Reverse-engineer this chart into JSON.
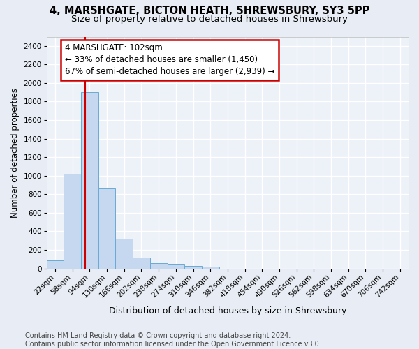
{
  "title1": "4, MARSHGATE, BICTON HEATH, SHREWSBURY, SY3 5PP",
  "title2": "Size of property relative to detached houses in Shrewsbury",
  "xlabel": "Distribution of detached houses by size in Shrewsbury",
  "ylabel": "Number of detached properties",
  "footnote": "Contains HM Land Registry data © Crown copyright and database right 2024.\nContains public sector information licensed under the Open Government Licence v3.0.",
  "bar_labels": [
    "22sqm",
    "58sqm",
    "94sqm",
    "130sqm",
    "166sqm",
    "202sqm",
    "238sqm",
    "274sqm",
    "310sqm",
    "346sqm",
    "382sqm",
    "418sqm",
    "454sqm",
    "490sqm",
    "526sqm",
    "562sqm",
    "598sqm",
    "634sqm",
    "670sqm",
    "706sqm",
    "742sqm"
  ],
  "bar_values": [
    90,
    1020,
    1900,
    860,
    320,
    115,
    55,
    50,
    30,
    20,
    0,
    0,
    0,
    0,
    0,
    0,
    0,
    0,
    0,
    0,
    0
  ],
  "bar_color": "#c5d8f0",
  "bar_edge_color": "#6aaad4",
  "annotation_line1": "4 MARSHGATE: 102sqm",
  "annotation_line2": "← 33% of detached houses are smaller (1,450)",
  "annotation_line3": "67% of semi-detached houses are larger (2,939) →",
  "annotation_box_color": "#ffffff",
  "annotation_box_edge_color": "#cc0000",
  "vline_color": "#cc0000",
  "vline_bin_index": 2.0,
  "ylim": [
    0,
    2500
  ],
  "yticks": [
    0,
    200,
    400,
    600,
    800,
    1000,
    1200,
    1400,
    1600,
    1800,
    2000,
    2200,
    2400
  ],
  "background_color": "#e8edf5",
  "plot_bg_color": "#edf1f8",
  "grid_color": "#ffffff",
  "title1_fontsize": 10.5,
  "title2_fontsize": 9.5,
  "xlabel_fontsize": 9,
  "ylabel_fontsize": 8.5,
  "tick_fontsize": 7.5,
  "annotation_fontsize": 8.5,
  "footnote_fontsize": 7
}
